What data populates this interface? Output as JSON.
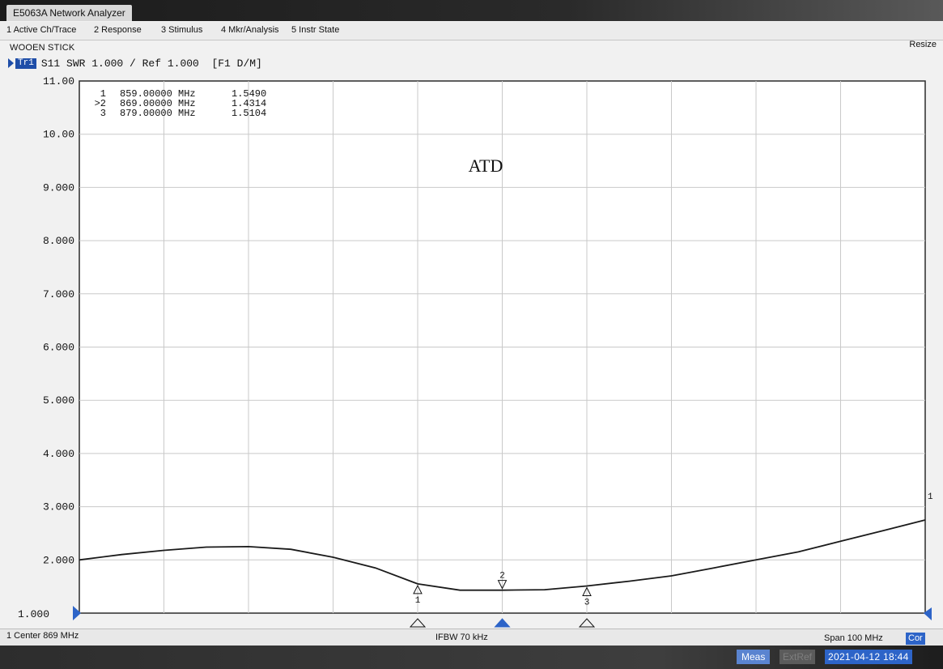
{
  "window": {
    "title": "E5063A Network Analyzer"
  },
  "menu": {
    "items": [
      "1 Active Ch/Trace",
      "2 Response",
      "3 Stimulus",
      "4 Mkr/Analysis",
      "5 Instr State"
    ],
    "resize": "Resize"
  },
  "channel": {
    "title": "WOOEN STICK"
  },
  "trace": {
    "badge": "Tr1",
    "info": "S11 SWR 1.000 / Ref 1.000  [F1 D/M]"
  },
  "status": {
    "center": "1 Center 869 MHz",
    "ifbw": "IFBW 70 kHz",
    "span": "Span 100 MHz",
    "cor": "Cor",
    "meas": "Meas",
    "extref": "ExtRef",
    "datetime": "2021-04-12 18:44"
  },
  "colors": {
    "accent": "#2d64c8",
    "trace": "#1a1a1a",
    "grid": "#c9c9c9"
  },
  "chart_data": {
    "type": "line",
    "title": "ATD",
    "xlabel": "",
    "ylabel": "",
    "xlim": [
      819,
      919
    ],
    "ylim": [
      1,
      11
    ],
    "grid": true,
    "ytick_labels": [
      "11.00",
      "10.00",
      "9.000",
      "8.000",
      "7.000",
      "6.000",
      "5.000",
      "4.000",
      "3.000",
      "2.000",
      "1.000"
    ],
    "series": [
      {
        "x": [
          819,
          824,
          829,
          834,
          839,
          844,
          849,
          854,
          859,
          864,
          869,
          874,
          879,
          884,
          889,
          894,
          899,
          904,
          909,
          914,
          919
        ],
        "values": [
          2.0,
          2.1,
          2.18,
          2.24,
          2.25,
          2.2,
          2.05,
          1.85,
          1.55,
          1.43,
          1.43,
          1.44,
          1.51,
          1.6,
          1.7,
          1.85,
          2.0,
          2.15,
          2.35,
          2.55,
          2.75
        ]
      }
    ],
    "markers": [
      {
        "id": "1",
        "freq": "859.00000 MHz",
        "x": 859,
        "value": "1.5490"
      },
      {
        "id": "2",
        "freq": "869.00000 MHz",
        "x": 869,
        "value": "1.4314",
        "active": true
      },
      {
        "id": "3",
        "freq": "879.00000 MHz",
        "x": 879,
        "value": "1.5104"
      }
    ],
    "trace_label": "1",
    "marker_table_unit_note": ""
  }
}
